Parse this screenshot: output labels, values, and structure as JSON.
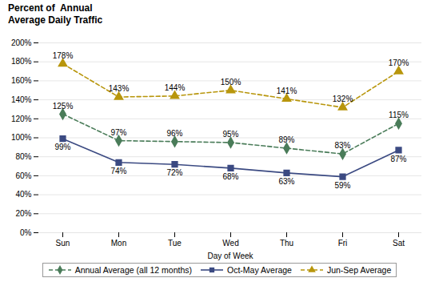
{
  "chart_data": {
    "type": "line",
    "title": "Percent of  Annual",
    "subtitle": "Average Daily Traffic",
    "xlabel": "Day of Week",
    "categories": [
      "Sun",
      "Mon",
      "Tue",
      "Wed",
      "Thu",
      "Fri",
      "Sat"
    ],
    "series": [
      {
        "name": "Annual Average (all 12 months)",
        "color": "#4a7c59",
        "marker": "diamond",
        "line_style": "dashed",
        "values": [
          125,
          97,
          96,
          95,
          89,
          83,
          115
        ],
        "value_labels": [
          "125%",
          "97%",
          "96%",
          "95%",
          "89%",
          "83%",
          "115%"
        ]
      },
      {
        "name": "Oct-May Average",
        "color": "#3b4a82",
        "marker": "square",
        "line_style": "solid",
        "values": [
          99,
          74,
          72,
          68,
          63,
          59,
          87
        ],
        "value_labels": [
          "99%",
          "74%",
          "72%",
          "68%",
          "63%",
          "59%",
          "87%"
        ]
      },
      {
        "name": "Jun-Sep Average",
        "color": "#b8960c",
        "marker": "triangle",
        "line_style": "dashed",
        "values": [
          178,
          143,
          144,
          150,
          141,
          132,
          170
        ],
        "value_labels": [
          "178%",
          "143%",
          "144%",
          "150%",
          "141%",
          "132%",
          "170%"
        ]
      }
    ],
    "ylim": [
      0,
      200
    ],
    "yticks": [
      {
        "value": 0,
        "label": "0%"
      },
      {
        "value": 20,
        "label": "20%"
      },
      {
        "value": 40,
        "label": "40%"
      },
      {
        "value": 60,
        "label": "60%"
      },
      {
        "value": 80,
        "label": "80%"
      },
      {
        "value": 100,
        "label": "100%"
      },
      {
        "value": 120,
        "label": "120%"
      },
      {
        "value": 140,
        "label": "140%"
      },
      {
        "value": 160,
        "label": "160%"
      },
      {
        "value": 180,
        "label": "180%"
      },
      {
        "value": 200,
        "label": "200%"
      }
    ],
    "grid": true,
    "legend": "bottom",
    "data_labels": true
  }
}
